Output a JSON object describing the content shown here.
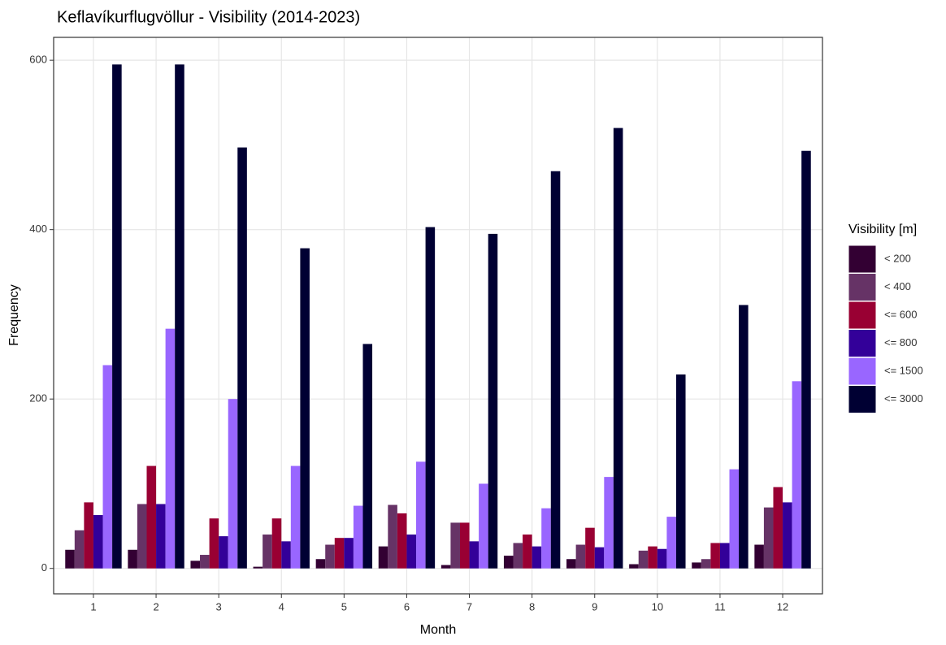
{
  "chart_data": {
    "type": "bar",
    "title": "Keflavíkurflugvöllur - Visibility (2014-2023)",
    "x_label": "Month",
    "y_label": "Frequency",
    "legend_title": "Visibility [m]",
    "legend_position": "right",
    "grid": true,
    "categories": [
      "1",
      "2",
      "3",
      "4",
      "5",
      "6",
      "7",
      "8",
      "9",
      "10",
      "11",
      "12"
    ],
    "series": [
      {
        "name": "< 200",
        "color": "#330033",
        "values": [
          22,
          22,
          9,
          2,
          11,
          26,
          4,
          15,
          11,
          5,
          7,
          28
        ]
      },
      {
        "name": "< 400",
        "color": "#663366",
        "values": [
          45,
          76,
          16,
          40,
          28,
          75,
          54,
          30,
          28,
          21,
          11,
          72
        ]
      },
      {
        "name": "<= 600",
        "color": "#990033",
        "values": [
          78,
          121,
          59,
          59,
          36,
          65,
          54,
          40,
          48,
          26,
          30,
          96
        ]
      },
      {
        "name": "<= 800",
        "color": "#330099",
        "values": [
          63,
          76,
          38,
          32,
          36,
          40,
          32,
          26,
          25,
          23,
          30,
          78
        ]
      },
      {
        "name": "<= 1500",
        "color": "#9966ff",
        "values": [
          240,
          283,
          200,
          121,
          74,
          126,
          100,
          71,
          108,
          61,
          117,
          221
        ]
      },
      {
        "name": "<= 3000",
        "color": "#000033",
        "values": [
          595,
          595,
          497,
          378,
          265,
          403,
          395,
          469,
          520,
          229,
          311,
          493
        ]
      }
    ],
    "ylim": [
      -30,
      627
    ],
    "yticks": [
      0,
      200,
      400,
      600
    ]
  }
}
